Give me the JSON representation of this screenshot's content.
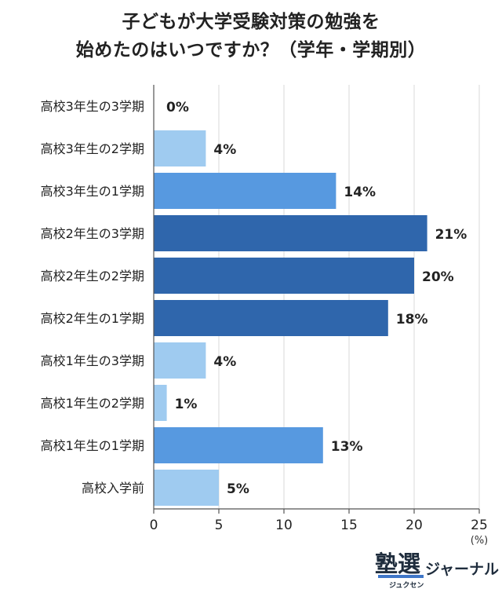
{
  "chart_data": {
    "type": "bar",
    "orientation": "horizontal",
    "title_lines": [
      "子どもが大学受験対策の勉強を",
      "始めたのはいつですか？（学年・学期別）"
    ],
    "categories": [
      "高校3年生の3学期",
      "高校3年生の2学期",
      "高校3年生の1学期",
      "高校2年生の3学期",
      "高校2年生の2学期",
      "高校2年生の1学期",
      "高校1年生の3学期",
      "高校1年生の2学期",
      "高校1年生の1学期",
      "高校入学前"
    ],
    "values": [
      0,
      4,
      14,
      21,
      20,
      18,
      4,
      1,
      13,
      5
    ],
    "value_labels": [
      "0%",
      "4%",
      "14%",
      "21%",
      "20%",
      "18%",
      "4%",
      "1%",
      "13%",
      "5%"
    ],
    "bar_colors": [
      "#9fcbf0",
      "#9fcbf0",
      "#5799e0",
      "#2f66ac",
      "#2f66ac",
      "#2f66ac",
      "#9fcbf0",
      "#9fcbf0",
      "#5799e0",
      "#9fcbf0"
    ],
    "xlim": [
      0,
      25
    ],
    "xticks": [
      0,
      5,
      10,
      15,
      20,
      25
    ],
    "xunit_label": "(%)",
    "grid": true,
    "grid_color": "#d9d9d9",
    "axis_color": "#555555"
  },
  "logo": {
    "kanji": "塾選",
    "ruby": "ジュクセン",
    "kana": "ジャーナル"
  }
}
